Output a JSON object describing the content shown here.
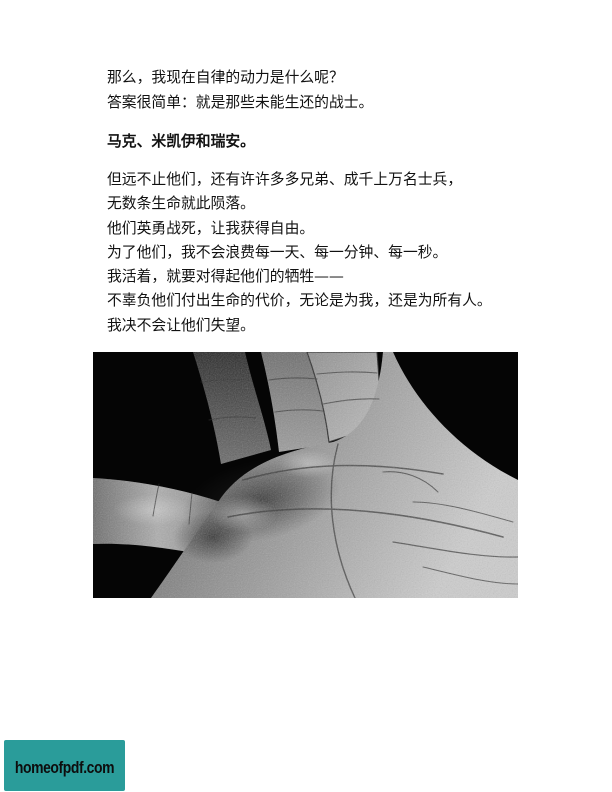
{
  "document": {
    "paragraph_1": [
      "那么，我现在自律的动力是什么呢？",
      "答案很简单：就是那些未能生还的战士。"
    ],
    "heading": "马克、米凯伊和瑞安。",
    "paragraph_2": [
      "但远不止他们，还有许许多多兄弟、成千上万名士兵，",
      "无数条生命就此陨落。",
      "他们英勇战死，让我获得自由。",
      "为了他们，我不会浪费每一天、每一分钟、每一秒。",
      "我活着，就要对得起他们的牺牲——",
      "不辜负他们付出生命的代价，无论是为我，还是为所有人。",
      "我决不会让他们失望。"
    ]
  },
  "watermark": {
    "text": "homeofpdf.com"
  },
  "colors": {
    "page_background": "#ffffff",
    "text": "#111111",
    "watermark_background": "#2a9c9a",
    "watermark_text": "#0d0d0d"
  }
}
